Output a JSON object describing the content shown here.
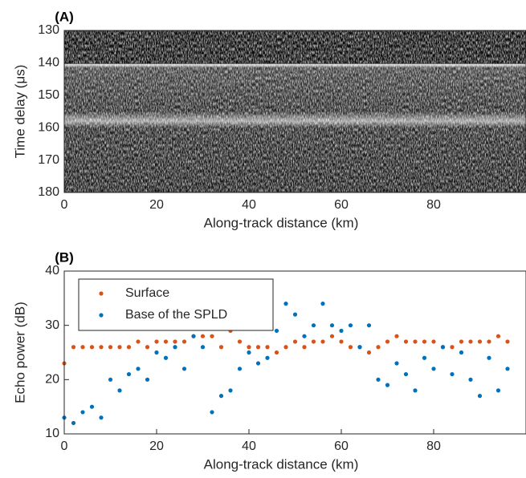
{
  "chart_data": [
    {
      "type": "image",
      "title": "(A)",
      "xlabel": "Along-track distance (km)",
      "ylabel": "Time delay (μs)",
      "xlim": [
        0,
        100
      ],
      "ylim": [
        130,
        180
      ],
      "y_reversed": true,
      "xticks": [
        0,
        20,
        40,
        60,
        80
      ],
      "yticks": [
        130,
        140,
        150,
        160,
        170,
        180
      ]
    },
    {
      "type": "scatter",
      "title": "(B)",
      "xlabel": "Along-track distance (km)",
      "ylabel": "Echo power (dB)",
      "xlim": [
        0,
        100
      ],
      "ylim": [
        10,
        40
      ],
      "xticks": [
        0,
        20,
        40,
        60,
        80
      ],
      "yticks": [
        10,
        20,
        30,
        40
      ],
      "legend": "upper left",
      "x": [
        0,
        2,
        4,
        6,
        8,
        10,
        12,
        14,
        16,
        18,
        20,
        22,
        24,
        26,
        28,
        30,
        32,
        34,
        36,
        38,
        40,
        42,
        44,
        46,
        48,
        50,
        52,
        54,
        56,
        58,
        60,
        62,
        64,
        66,
        68,
        70,
        72,
        74,
        76,
        78,
        80,
        82,
        84,
        86,
        88,
        90,
        92,
        94,
        96
      ],
      "series": [
        {
          "name": "Surface",
          "color": "#d95319",
          "values": [
            23,
            26,
            26,
            26,
            26,
            26,
            26,
            26,
            27,
            26,
            27,
            27,
            27,
            27,
            28,
            28,
            28,
            26,
            29,
            27,
            26,
            26,
            26,
            25,
            26,
            27,
            26,
            27,
            27,
            28,
            27,
            26,
            26,
            25,
            26,
            27,
            28,
            27,
            27,
            27,
            27,
            26,
            26,
            27,
            27,
            27,
            27,
            28,
            27
          ]
        },
        {
          "name": "Base of the SPLD",
          "color": "#0072bd",
          "values": [
            13,
            12,
            14,
            15,
            13,
            20,
            18,
            21,
            22,
            20,
            25,
            24,
            26,
            22,
            28,
            26,
            14,
            17,
            18,
            22,
            25,
            23,
            24,
            29,
            34,
            32,
            28,
            30,
            34,
            30,
            29,
            30,
            26,
            30,
            20,
            19,
            23,
            21,
            18,
            24,
            22,
            26,
            21,
            25,
            20,
            17,
            24,
            18,
            22
          ]
        }
      ]
    }
  ]
}
